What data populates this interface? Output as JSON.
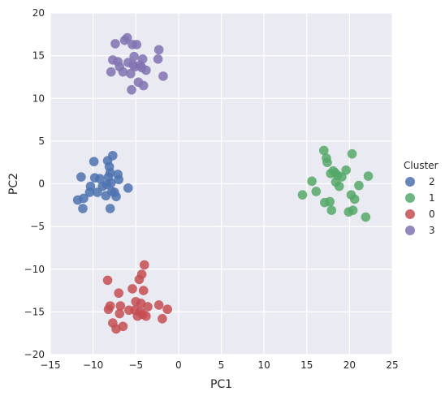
{
  "chart_data": {
    "type": "scatter",
    "title": "",
    "xlabel": "PC1",
    "ylabel": "PC2",
    "xlim": [
      -15,
      25
    ],
    "ylim": [
      -20,
      20
    ],
    "xticks": [
      "−15",
      "−10",
      "−5",
      "0",
      "5",
      "10",
      "15",
      "20",
      "25"
    ],
    "yticks": [
      "−20",
      "−15",
      "−10",
      "−5",
      "0",
      "5",
      "10",
      "15",
      "20"
    ],
    "grid": true,
    "legend": {
      "title": "Cluster",
      "position": "right"
    },
    "series": [
      {
        "name": "2",
        "color": "#4C72B0",
        "points": [
          [
            -11.8,
            -1.9
          ],
          [
            -11.4,
            0.8
          ],
          [
            -11.2,
            -2.9
          ],
          [
            -11.1,
            -1.7
          ],
          [
            -10.4,
            -1.0
          ],
          [
            -10.3,
            -0.3
          ],
          [
            -9.9,
            2.6
          ],
          [
            -9.8,
            0.7
          ],
          [
            -9.5,
            -1.0
          ],
          [
            -9.2,
            0.6
          ],
          [
            -8.9,
            -0.3
          ],
          [
            -8.5,
            -1.4
          ],
          [
            -8.4,
            -0.1
          ],
          [
            -8.3,
            2.7
          ],
          [
            -8.2,
            0.8
          ],
          [
            -8.1,
            2.0
          ],
          [
            -8.0,
            1.3
          ],
          [
            -8.0,
            -2.9
          ],
          [
            -7.9,
            0.1
          ],
          [
            -7.8,
            -0.9
          ],
          [
            -7.7,
            3.3
          ],
          [
            -7.5,
            -1.0
          ],
          [
            -7.3,
            -1.5
          ],
          [
            -7.1,
            1.1
          ],
          [
            -7.0,
            0.5
          ],
          [
            -5.9,
            -0.5
          ]
        ]
      },
      {
        "name": "1",
        "color": "#55A868",
        "points": [
          [
            14.5,
            -1.3
          ],
          [
            15.6,
            0.3
          ],
          [
            16.1,
            -0.9
          ],
          [
            17.0,
            3.9
          ],
          [
            17.1,
            -2.2
          ],
          [
            17.3,
            3.0
          ],
          [
            17.4,
            2.5
          ],
          [
            17.7,
            -2.1
          ],
          [
            17.8,
            1.2
          ],
          [
            17.9,
            -3.1
          ],
          [
            18.1,
            1.5
          ],
          [
            18.3,
            1.3
          ],
          [
            18.4,
            0.2
          ],
          [
            18.6,
            1.0
          ],
          [
            18.8,
            -0.3
          ],
          [
            19.1,
            0.8
          ],
          [
            19.6,
            1.6
          ],
          [
            19.9,
            -3.3
          ],
          [
            20.2,
            -1.3
          ],
          [
            20.3,
            3.5
          ],
          [
            20.4,
            -3.1
          ],
          [
            20.6,
            -1.8
          ],
          [
            21.1,
            -0.2
          ],
          [
            21.9,
            -3.9
          ],
          [
            22.2,
            0.9
          ]
        ]
      },
      {
        "name": "0",
        "color": "#C44E52",
        "points": [
          [
            -8.3,
            -11.3
          ],
          [
            -8.2,
            -14.7
          ],
          [
            -8.0,
            -14.3
          ],
          [
            -7.7,
            -16.3
          ],
          [
            -7.3,
            -17.0
          ],
          [
            -7.0,
            -12.8
          ],
          [
            -6.9,
            -15.2
          ],
          [
            -6.8,
            -14.3
          ],
          [
            -6.5,
            -16.7
          ],
          [
            -5.8,
            -14.8
          ],
          [
            -5.4,
            -12.3
          ],
          [
            -5.1,
            -14.8
          ],
          [
            -5.0,
            -13.8
          ],
          [
            -4.8,
            -15.5
          ],
          [
            -4.6,
            -11.2
          ],
          [
            -4.5,
            -15.0
          ],
          [
            -4.4,
            -14.0
          ],
          [
            -4.3,
            -10.6
          ],
          [
            -4.2,
            -15.3
          ],
          [
            -4.1,
            -12.5
          ],
          [
            -4.0,
            -9.5
          ],
          [
            -3.8,
            -15.5
          ],
          [
            -3.6,
            -14.4
          ],
          [
            -2.3,
            -14.2
          ],
          [
            -1.9,
            -15.8
          ],
          [
            -1.3,
            -14.7
          ]
        ]
      },
      {
        "name": "3",
        "color": "#8172B2",
        "points": [
          [
            -7.9,
            13.1
          ],
          [
            -7.7,
            14.5
          ],
          [
            -7.4,
            16.4
          ],
          [
            -7.1,
            14.3
          ],
          [
            -6.9,
            13.7
          ],
          [
            -6.5,
            13.1
          ],
          [
            -6.3,
            16.8
          ],
          [
            -6.0,
            17.1
          ],
          [
            -5.9,
            14.2
          ],
          [
            -5.6,
            12.9
          ],
          [
            -5.5,
            11.0
          ],
          [
            -5.4,
            16.3
          ],
          [
            -5.3,
            13.9
          ],
          [
            -5.2,
            14.9
          ],
          [
            -5.1,
            13.7
          ],
          [
            -4.9,
            16.3
          ],
          [
            -4.7,
            11.9
          ],
          [
            -4.5,
            13.9
          ],
          [
            -4.3,
            13.6
          ],
          [
            -4.2,
            14.6
          ],
          [
            -4.1,
            11.5
          ],
          [
            -3.8,
            13.3
          ],
          [
            -2.4,
            14.6
          ],
          [
            -2.3,
            15.7
          ],
          [
            -1.8,
            12.6
          ]
        ]
      }
    ]
  }
}
